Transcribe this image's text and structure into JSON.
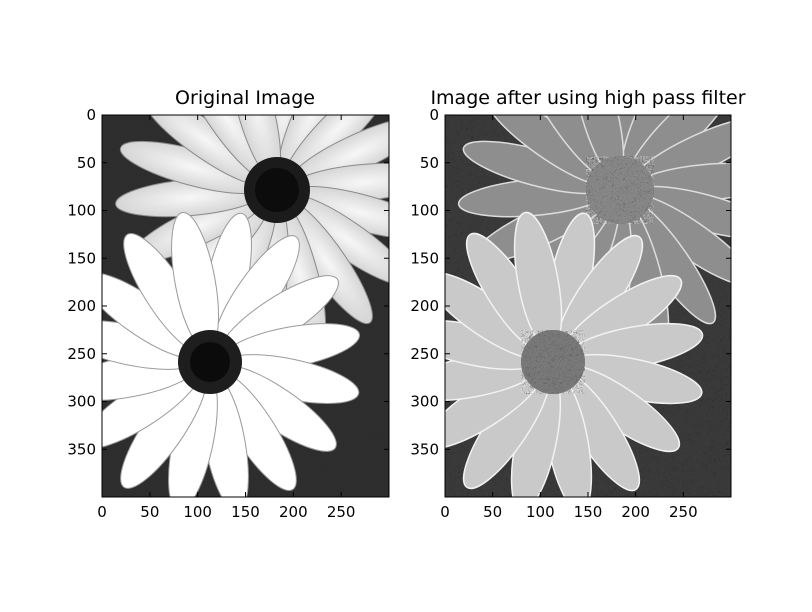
{
  "panels": [
    {
      "title": "Original Image",
      "x_ticks": [
        "0",
        "50",
        "100",
        "150",
        "200",
        "250"
      ],
      "y_ticks": [
        "0",
        "50",
        "100",
        "150",
        "200",
        "250",
        "300",
        "350"
      ],
      "image": "grayscale photo of two daisy flowers"
    },
    {
      "title": "Image after using high pass filter",
      "x_ticks": [
        "0",
        "50",
        "100",
        "150",
        "200",
        "250"
      ],
      "y_ticks": [
        "0",
        "50",
        "100",
        "150",
        "200",
        "250",
        "300",
        "350"
      ],
      "image": "high-pass filtered grayscale daisy image"
    }
  ],
  "colors": {
    "background": "#ffffff",
    "frame": "#000000"
  }
}
